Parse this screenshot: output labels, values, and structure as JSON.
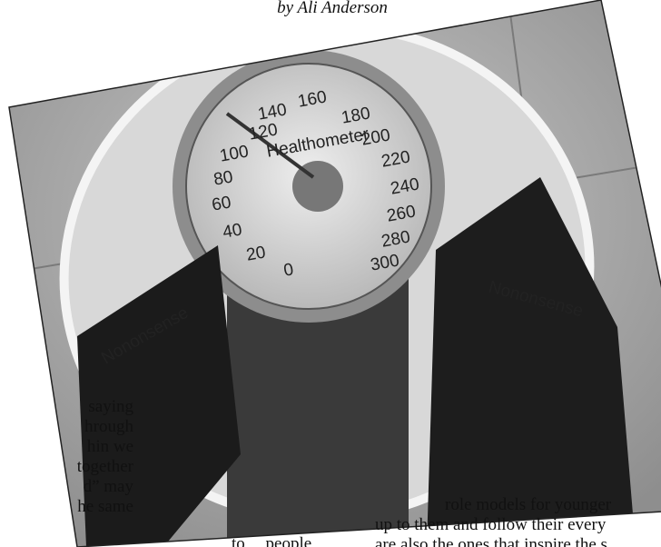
{
  "byline": "by Ali Anderson",
  "photo": {
    "dial_numbers": [
      0,
      20,
      40,
      60,
      80,
      100,
      120,
      140,
      160,
      180,
      200,
      220,
      240,
      260,
      280,
      300
    ],
    "dial_brand": "Healthometer",
    "sock_brand_left": "Nononsense",
    "sock_brand_right": "Nononsense"
  },
  "columns": {
    "left": [
      "saying",
      "hrough",
      "hin we",
      "together",
      "d” may",
      "he same"
    ],
    "middle": [
      "to people"
    ],
    "right": [
      "role models for younger",
      "up to them and follow their every",
      "are also the ones that inspire the s"
    ]
  }
}
